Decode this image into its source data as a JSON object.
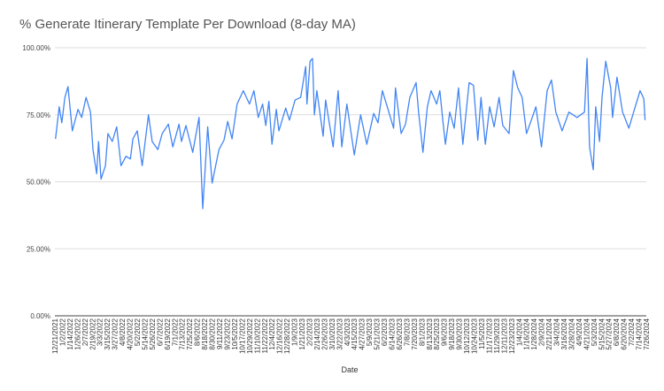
{
  "chart_data": {
    "type": "line",
    "title": "% Generate Itinerary Template Per Download (8-day MA)",
    "xlabel": "Date",
    "ylabel": "",
    "x_unit": "days since 12/21/2021",
    "xlim": [
      0,
      948
    ],
    "ylim": [
      0,
      100
    ],
    "y_ticks": [
      0,
      25,
      50,
      75,
      100
    ],
    "y_tick_labels": [
      "0.00%",
      "25.00%",
      "50.00%",
      "75.00%",
      "100.00%"
    ],
    "grid": true,
    "legend": "none",
    "line_color": "#4285f4",
    "x_tick_step_days": 12,
    "x_tick_labels": [
      "12/21/2021",
      "1/2/2022",
      "1/14/2022",
      "1/26/2022",
      "2/7/2022",
      "2/19/2022",
      "3/3/2022",
      "3/15/2022",
      "3/27/2022",
      "4/8/2022",
      "4/20/2022",
      "5/2/2022",
      "5/14/2022",
      "5/26/2022",
      "6/7/2022",
      "6/19/2022",
      "7/1/2022",
      "7/13/2022",
      "7/25/2022",
      "8/6/2022",
      "8/18/2022",
      "8/30/2022",
      "9/11/2022",
      "9/23/2022",
      "10/5/2022",
      "10/17/2022",
      "10/29/2022",
      "11/10/2022",
      "11/22/2022",
      "12/4/2022",
      "12/16/2022",
      "12/28/2022",
      "1/9/2023",
      "1/21/2023",
      "2/2/2023",
      "2/14/2023",
      "2/26/2023",
      "3/10/2023",
      "3/22/2023",
      "4/3/2023",
      "4/15/2023",
      "4/27/2023",
      "5/9/2023",
      "5/21/2023",
      "6/2/2023",
      "6/14/2023",
      "6/26/2023",
      "7/8/2023",
      "7/20/2023",
      "8/1/2023",
      "8/13/2023",
      "8/25/2023",
      "9/6/2023",
      "9/18/2023",
      "9/30/2023",
      "10/12/2023",
      "10/24/2023",
      "11/5/2023",
      "11/17/2023",
      "11/29/2023",
      "12/11/2023",
      "12/23/2023",
      "1/4/2024",
      "1/16/2024",
      "1/28/2024",
      "2/9/2024",
      "2/21/2024",
      "3/4/2024",
      "3/16/2024",
      "3/28/2024",
      "4/9/2024",
      "4/21/2024",
      "5/3/2024",
      "5/15/2024",
      "5/27/2024",
      "6/8/2024",
      "6/20/2024",
      "7/2/2024",
      "7/14/2024",
      "7/26/2024"
    ],
    "series": [
      {
        "name": "% Generate Itinerary Template Per Download (8-day MA)",
        "points": [
          [
            1,
            66
          ],
          [
            7,
            78
          ],
          [
            11,
            72
          ],
          [
            16,
            81.5
          ],
          [
            21,
            85.5
          ],
          [
            28,
            69
          ],
          [
            37,
            77
          ],
          [
            43,
            74
          ],
          [
            50,
            81.5
          ],
          [
            57,
            76
          ],
          [
            61,
            62
          ],
          [
            67,
            53
          ],
          [
            70,
            65
          ],
          [
            74,
            51
          ],
          [
            81,
            56
          ],
          [
            85,
            68
          ],
          [
            92,
            65
          ],
          [
            99,
            70.5
          ],
          [
            106,
            56
          ],
          [
            114,
            59.5
          ],
          [
            121,
            58.5
          ],
          [
            125,
            66
          ],
          [
            132,
            69
          ],
          [
            140,
            56
          ],
          [
            150,
            75
          ],
          [
            156,
            65
          ],
          [
            165,
            62
          ],
          [
            172,
            68
          ],
          [
            182,
            71.5
          ],
          [
            189,
            63
          ],
          [
            199,
            71.5
          ],
          [
            203,
            65
          ],
          [
            210,
            71
          ],
          [
            221,
            61
          ],
          [
            231,
            74
          ],
          [
            237,
            40
          ],
          [
            245,
            70.5
          ],
          [
            252,
            49.5
          ],
          [
            263,
            62
          ],
          [
            271,
            65.5
          ],
          [
            277,
            72.5
          ],
          [
            284,
            66
          ],
          [
            292,
            79
          ],
          [
            302,
            84
          ],
          [
            312,
            79
          ],
          [
            319,
            84
          ],
          [
            326,
            74
          ],
          [
            333,
            79
          ],
          [
            338,
            71
          ],
          [
            343,
            80
          ],
          [
            348,
            64
          ],
          [
            355,
            77
          ],
          [
            359,
            69
          ],
          [
            370,
            77.5
          ],
          [
            376,
            73
          ],
          [
            385,
            80.5
          ],
          [
            394,
            81.5
          ],
          [
            402,
            93
          ],
          [
            404,
            79
          ],
          [
            409,
            95
          ],
          [
            413,
            96
          ],
          [
            416,
            75
          ],
          [
            420,
            84
          ],
          [
            430,
            67
          ],
          [
            434,
            80.5
          ],
          [
            446,
            63
          ],
          [
            454,
            84
          ],
          [
            460,
            63
          ],
          [
            468,
            79
          ],
          [
            480,
            60
          ],
          [
            490,
            75
          ],
          [
            500,
            64
          ],
          [
            511,
            75.5
          ],
          [
            518,
            72
          ],
          [
            525,
            84
          ],
          [
            534,
            77
          ],
          [
            543,
            70
          ],
          [
            546,
            85
          ],
          [
            555,
            68
          ],
          [
            562,
            71.5
          ],
          [
            569,
            81.5
          ],
          [
            579,
            87
          ],
          [
            583,
            76
          ],
          [
            590,
            61
          ],
          [
            597,
            78
          ],
          [
            603,
            84
          ],
          [
            612,
            79
          ],
          [
            617,
            84
          ],
          [
            622,
            72.5
          ],
          [
            626,
            64
          ],
          [
            633,
            76
          ],
          [
            640,
            70
          ],
          [
            647,
            85
          ],
          [
            654,
            64
          ],
          [
            664,
            87
          ],
          [
            671,
            86
          ],
          [
            678,
            65.5
          ],
          [
            683,
            81.5
          ],
          [
            690,
            64
          ],
          [
            697,
            78
          ],
          [
            704,
            70.5
          ],
          [
            712,
            81.5
          ],
          [
            718,
            71
          ],
          [
            728,
            68
          ],
          [
            735,
            91.5
          ],
          [
            742,
            85
          ],
          [
            749,
            81.5
          ],
          [
            756,
            68
          ],
          [
            763,
            72.5
          ],
          [
            771,
            78
          ],
          [
            780,
            63
          ],
          [
            789,
            84
          ],
          [
            796,
            88
          ],
          [
            803,
            76
          ],
          [
            813,
            69
          ],
          [
            824,
            76
          ],
          [
            837,
            74
          ],
          [
            849,
            76
          ],
          [
            853,
            96
          ],
          [
            857,
            63
          ],
          [
            863,
            54.5
          ],
          [
            867,
            78
          ],
          [
            873,
            65
          ],
          [
            877,
            81.5
          ],
          [
            883,
            95
          ],
          [
            891,
            85
          ],
          [
            894,
            74
          ],
          [
            901,
            89
          ],
          [
            910,
            76
          ],
          [
            920,
            70
          ],
          [
            929,
            77
          ],
          [
            938,
            84
          ],
          [
            944,
            81
          ],
          [
            946,
            73
          ]
        ]
      }
    ]
  }
}
